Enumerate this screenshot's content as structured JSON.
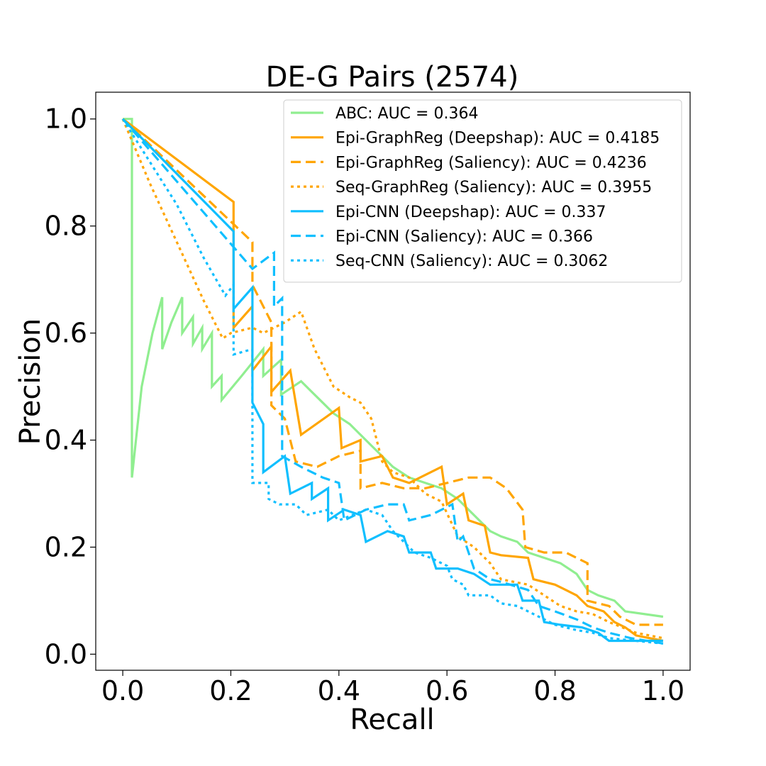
{
  "chart_data": {
    "type": "line",
    "title": "DE-G Pairs (2574)",
    "xlabel": "Recall",
    "ylabel": "Precision",
    "xlim": [
      -0.05,
      1.05
    ],
    "ylim": [
      -0.03,
      1.05
    ],
    "xticks": [
      0.0,
      0.2,
      0.4,
      0.6,
      0.8,
      1.0
    ],
    "xtick_labels": [
      "0.0",
      "0.2",
      "0.4",
      "0.6",
      "0.8",
      "1.0"
    ],
    "yticks": [
      0.0,
      0.2,
      0.4,
      0.6,
      0.8,
      1.0
    ],
    "ytick_labels": [
      "0.0",
      "0.2",
      "0.4",
      "0.6",
      "0.8",
      "1.0"
    ],
    "grid": false,
    "legend_position": "top-right",
    "series": [
      {
        "name": "ABC: AUC = 0.364",
        "color": "#90ee90",
        "dash": "solid",
        "points": [
          [
            0.0,
            1.0
          ],
          [
            0.017,
            1.0
          ],
          [
            0.017,
            0.33
          ],
          [
            0.035,
            0.5
          ],
          [
            0.055,
            0.6
          ],
          [
            0.073,
            0.667
          ],
          [
            0.073,
            0.57
          ],
          [
            0.09,
            0.62
          ],
          [
            0.11,
            0.667
          ],
          [
            0.11,
            0.6
          ],
          [
            0.13,
            0.63
          ],
          [
            0.13,
            0.58
          ],
          [
            0.147,
            0.61
          ],
          [
            0.147,
            0.57
          ],
          [
            0.165,
            0.6
          ],
          [
            0.165,
            0.5
          ],
          [
            0.183,
            0.52
          ],
          [
            0.183,
            0.475
          ],
          [
            0.22,
            0.52
          ],
          [
            0.26,
            0.57
          ],
          [
            0.26,
            0.52
          ],
          [
            0.293,
            0.55
          ],
          [
            0.293,
            0.485
          ],
          [
            0.33,
            0.51
          ],
          [
            0.35,
            0.49
          ],
          [
            0.37,
            0.47
          ],
          [
            0.39,
            0.45
          ],
          [
            0.42,
            0.43
          ],
          [
            0.44,
            0.41
          ],
          [
            0.46,
            0.39
          ],
          [
            0.48,
            0.37
          ],
          [
            0.5,
            0.35
          ],
          [
            0.53,
            0.33
          ],
          [
            0.56,
            0.32
          ],
          [
            0.59,
            0.31
          ],
          [
            0.62,
            0.29
          ],
          [
            0.65,
            0.26
          ],
          [
            0.68,
            0.23
          ],
          [
            0.7,
            0.22
          ],
          [
            0.73,
            0.21
          ],
          [
            0.75,
            0.19
          ],
          [
            0.78,
            0.18
          ],
          [
            0.81,
            0.17
          ],
          [
            0.84,
            0.15
          ],
          [
            0.86,
            0.12
          ],
          [
            0.88,
            0.11
          ],
          [
            0.91,
            0.1
          ],
          [
            0.93,
            0.08
          ],
          [
            1.0,
            0.07
          ]
        ]
      },
      {
        "name": "Epi-GraphReg (Deepshap): AUC = 0.4185",
        "color": "#ffa500",
        "dash": "solid",
        "points": [
          [
            0.0,
            1.0
          ],
          [
            0.205,
            0.845
          ],
          [
            0.205,
            0.61
          ],
          [
            0.24,
            0.65
          ],
          [
            0.24,
            0.53
          ],
          [
            0.275,
            0.575
          ],
          [
            0.275,
            0.49
          ],
          [
            0.31,
            0.53
          ],
          [
            0.33,
            0.41
          ],
          [
            0.4,
            0.46
          ],
          [
            0.405,
            0.385
          ],
          [
            0.44,
            0.4
          ],
          [
            0.44,
            0.36
          ],
          [
            0.48,
            0.37
          ],
          [
            0.5,
            0.33
          ],
          [
            0.53,
            0.32
          ],
          [
            0.59,
            0.35
          ],
          [
            0.6,
            0.28
          ],
          [
            0.63,
            0.3
          ],
          [
            0.64,
            0.25
          ],
          [
            0.67,
            0.24
          ],
          [
            0.68,
            0.19
          ],
          [
            0.7,
            0.185
          ],
          [
            0.75,
            0.18
          ],
          [
            0.76,
            0.14
          ],
          [
            0.8,
            0.13
          ],
          [
            0.82,
            0.12
          ],
          [
            0.84,
            0.11
          ],
          [
            0.86,
            0.09
          ],
          [
            0.89,
            0.08
          ],
          [
            0.91,
            0.06
          ],
          [
            0.93,
            0.05
          ],
          [
            0.95,
            0.035
          ],
          [
            1.0,
            0.025
          ]
        ]
      },
      {
        "name": "Epi-GraphReg (Saliency): AUC = 0.4236",
        "color": "#ffa500",
        "dash": "dashed",
        "points": [
          [
            0.0,
            1.0
          ],
          [
            0.24,
            0.77
          ],
          [
            0.24,
            0.69
          ],
          [
            0.275,
            0.62
          ],
          [
            0.275,
            0.465
          ],
          [
            0.29,
            0.45
          ],
          [
            0.3,
            0.44
          ],
          [
            0.32,
            0.36
          ],
          [
            0.36,
            0.35
          ],
          [
            0.4,
            0.37
          ],
          [
            0.44,
            0.38
          ],
          [
            0.44,
            0.31
          ],
          [
            0.48,
            0.32
          ],
          [
            0.52,
            0.31
          ],
          [
            0.56,
            0.31
          ],
          [
            0.6,
            0.32
          ],
          [
            0.64,
            0.33
          ],
          [
            0.68,
            0.33
          ],
          [
            0.71,
            0.31
          ],
          [
            0.74,
            0.27
          ],
          [
            0.745,
            0.2
          ],
          [
            0.78,
            0.19
          ],
          [
            0.82,
            0.19
          ],
          [
            0.86,
            0.17
          ],
          [
            0.86,
            0.1
          ],
          [
            0.9,
            0.09
          ],
          [
            0.92,
            0.07
          ],
          [
            0.95,
            0.055
          ],
          [
            1.0,
            0.055
          ]
        ]
      },
      {
        "name": "Seq-GraphReg (Saliency): AUC = 0.3955",
        "color": "#ffa500",
        "dash": "dotted",
        "points": [
          [
            0.0,
            1.0
          ],
          [
            0.05,
            0.88
          ],
          [
            0.1,
            0.77
          ],
          [
            0.15,
            0.66
          ],
          [
            0.185,
            0.59
          ],
          [
            0.2,
            0.6
          ],
          [
            0.24,
            0.61
          ],
          [
            0.26,
            0.6
          ],
          [
            0.3,
            0.62
          ],
          [
            0.33,
            0.64
          ],
          [
            0.355,
            0.57
          ],
          [
            0.39,
            0.5
          ],
          [
            0.42,
            0.48
          ],
          [
            0.44,
            0.47
          ],
          [
            0.46,
            0.44
          ],
          [
            0.48,
            0.36
          ],
          [
            0.5,
            0.34
          ],
          [
            0.53,
            0.33
          ],
          [
            0.56,
            0.3
          ],
          [
            0.59,
            0.285
          ],
          [
            0.62,
            0.22
          ],
          [
            0.65,
            0.2
          ],
          [
            0.68,
            0.17
          ],
          [
            0.7,
            0.14
          ],
          [
            0.75,
            0.13
          ],
          [
            0.78,
            0.11
          ],
          [
            0.81,
            0.09
          ],
          [
            0.84,
            0.08
          ],
          [
            0.87,
            0.075
          ],
          [
            0.9,
            0.06
          ],
          [
            0.95,
            0.04
          ],
          [
            1.0,
            0.03
          ]
        ]
      },
      {
        "name": "Epi-CNN (Deepshap): AUC = 0.337",
        "color": "#10bfff",
        "dash": "solid",
        "points": [
          [
            0.0,
            1.0
          ],
          [
            0.205,
            0.79
          ],
          [
            0.205,
            0.645
          ],
          [
            0.24,
            0.685
          ],
          [
            0.24,
            0.47
          ],
          [
            0.26,
            0.43
          ],
          [
            0.26,
            0.34
          ],
          [
            0.3,
            0.37
          ],
          [
            0.31,
            0.3
          ],
          [
            0.35,
            0.32
          ],
          [
            0.35,
            0.29
          ],
          [
            0.38,
            0.31
          ],
          [
            0.38,
            0.25
          ],
          [
            0.41,
            0.27
          ],
          [
            0.44,
            0.26
          ],
          [
            0.45,
            0.21
          ],
          [
            0.49,
            0.23
          ],
          [
            0.52,
            0.22
          ],
          [
            0.53,
            0.19
          ],
          [
            0.57,
            0.19
          ],
          [
            0.58,
            0.16
          ],
          [
            0.62,
            0.16
          ],
          [
            0.65,
            0.15
          ],
          [
            0.68,
            0.13
          ],
          [
            0.73,
            0.13
          ],
          [
            0.74,
            0.1
          ],
          [
            0.77,
            0.1
          ],
          [
            0.78,
            0.06
          ],
          [
            0.81,
            0.055
          ],
          [
            0.85,
            0.05
          ],
          [
            0.88,
            0.04
          ],
          [
            0.9,
            0.025
          ],
          [
            0.95,
            0.025
          ],
          [
            1.0,
            0.025
          ]
        ]
      },
      {
        "name": "Epi-CNN (Saliency): AUC = 0.366",
        "color": "#10bfff",
        "dash": "dashed",
        "points": [
          [
            0.0,
            1.0
          ],
          [
            0.24,
            0.72
          ],
          [
            0.28,
            0.75
          ],
          [
            0.28,
            0.65
          ],
          [
            0.295,
            0.665
          ],
          [
            0.295,
            0.37
          ],
          [
            0.33,
            0.35
          ],
          [
            0.37,
            0.33
          ],
          [
            0.4,
            0.32
          ],
          [
            0.41,
            0.25
          ],
          [
            0.45,
            0.27
          ],
          [
            0.49,
            0.28
          ],
          [
            0.52,
            0.28
          ],
          [
            0.53,
            0.25
          ],
          [
            0.57,
            0.26
          ],
          [
            0.61,
            0.28
          ],
          [
            0.62,
            0.21
          ],
          [
            0.63,
            0.22
          ],
          [
            0.65,
            0.16
          ],
          [
            0.68,
            0.14
          ],
          [
            0.7,
            0.135
          ],
          [
            0.75,
            0.12
          ],
          [
            0.77,
            0.09
          ],
          [
            0.8,
            0.08
          ],
          [
            0.84,
            0.065
          ],
          [
            0.87,
            0.05
          ],
          [
            0.9,
            0.04
          ],
          [
            0.94,
            0.03
          ],
          [
            1.0,
            0.02
          ]
        ]
      },
      {
        "name": "Seq-CNN (Saliency): AUC = 0.3062",
        "color": "#10bfff",
        "dash": "dotted",
        "points": [
          [
            0.0,
            1.0
          ],
          [
            0.05,
            0.92
          ],
          [
            0.1,
            0.84
          ],
          [
            0.15,
            0.74
          ],
          [
            0.19,
            0.67
          ],
          [
            0.205,
            0.69
          ],
          [
            0.205,
            0.56
          ],
          [
            0.24,
            0.57
          ],
          [
            0.24,
            0.32
          ],
          [
            0.27,
            0.32
          ],
          [
            0.27,
            0.29
          ],
          [
            0.29,
            0.28
          ],
          [
            0.32,
            0.28
          ],
          [
            0.34,
            0.26
          ],
          [
            0.38,
            0.27
          ],
          [
            0.4,
            0.25
          ],
          [
            0.45,
            0.27
          ],
          [
            0.48,
            0.26
          ],
          [
            0.5,
            0.23
          ],
          [
            0.54,
            0.19
          ],
          [
            0.57,
            0.18
          ],
          [
            0.6,
            0.165
          ],
          [
            0.61,
            0.14
          ],
          [
            0.63,
            0.13
          ],
          [
            0.64,
            0.11
          ],
          [
            0.68,
            0.11
          ],
          [
            0.7,
            0.095
          ],
          [
            0.73,
            0.09
          ],
          [
            0.75,
            0.08
          ],
          [
            0.77,
            0.07
          ],
          [
            0.8,
            0.055
          ],
          [
            0.84,
            0.045
          ],
          [
            0.87,
            0.04
          ],
          [
            0.9,
            0.03
          ],
          [
            0.95,
            0.025
          ],
          [
            1.0,
            0.02
          ]
        ]
      }
    ]
  }
}
